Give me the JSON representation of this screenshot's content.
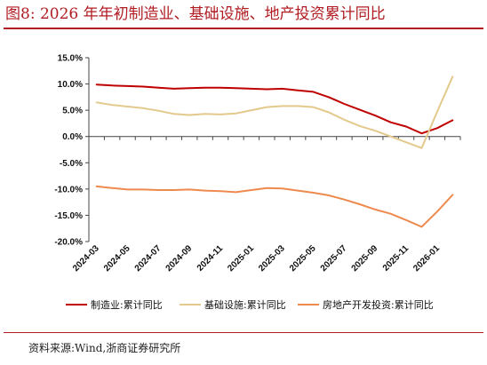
{
  "title": "图8:  2026 年年初制造业、基础设施、地产投资累计同比",
  "source": "资料来源:Wind,浙商证券研究所",
  "chart_data": {
    "type": "line",
    "title": "图8:  2026 年年初制造业、基础设施、地产投资累计同比",
    "xlabel": "",
    "ylabel": "",
    "y_unit": "%",
    "ylim": [
      -20,
      15
    ],
    "yticks": [
      15,
      10,
      5,
      0,
      -5,
      -10,
      -15,
      -20
    ],
    "ytick_labels": [
      "15.0%",
      "10.0%",
      "5.0%",
      "0.0%",
      "-5.0%",
      "-10.0%",
      "-15.0%",
      "-20.0%"
    ],
    "grid": false,
    "legend_position": "bottom",
    "x": [
      "2024-03",
      "2024-04",
      "2024-05",
      "2024-06",
      "2024-07",
      "2024-08",
      "2024-09",
      "2024-10",
      "2024-11",
      "2024-12",
      "2025-01",
      "2025-02",
      "2025-03",
      "2025-04",
      "2025-05",
      "2025-06",
      "2025-07",
      "2025-08",
      "2025-09",
      "2025-10",
      "2025-11",
      "2025-12",
      "2026-01",
      "2026-02"
    ],
    "xtick_labels": [
      "2024-03",
      "2024-05",
      "2024-07",
      "2024-09",
      "2024-11",
      "2025-01",
      "2025-03",
      "2025-05",
      "2025-07",
      "2025-09",
      "2025-11",
      "2026-01"
    ],
    "series": [
      {
        "name": "制造业:累计同比",
        "color": "#c00000",
        "values": [
          9.9,
          9.7,
          9.6,
          9.5,
          9.3,
          9.1,
          9.2,
          9.3,
          9.3,
          9.2,
          9.1,
          9.0,
          9.1,
          8.8,
          8.5,
          7.5,
          6.2,
          5.1,
          4.0,
          2.7,
          1.9,
          0.6,
          1.6,
          3.1
        ]
      },
      {
        "name": "基础设施:累计同比",
        "color": "#e3c98c",
        "values": [
          6.5,
          6.0,
          5.7,
          5.4,
          4.9,
          4.3,
          4.1,
          4.3,
          4.2,
          4.4,
          5.0,
          5.6,
          5.8,
          5.8,
          5.6,
          4.6,
          3.2,
          2.0,
          1.1,
          0.0,
          -1.1,
          -2.2,
          4.7,
          11.4
        ]
      },
      {
        "name": "房地产开发投资:累计同比",
        "color": "#ee8a4e",
        "values": [
          -9.5,
          -9.8,
          -10.1,
          -10.1,
          -10.2,
          -10.2,
          -10.1,
          -10.3,
          -10.4,
          -10.6,
          -10.2,
          -9.8,
          -9.9,
          -10.3,
          -10.7,
          -11.2,
          -12.0,
          -12.9,
          -13.9,
          -14.7,
          -15.9,
          -17.2,
          -14.3,
          -11.1
        ]
      }
    ]
  }
}
